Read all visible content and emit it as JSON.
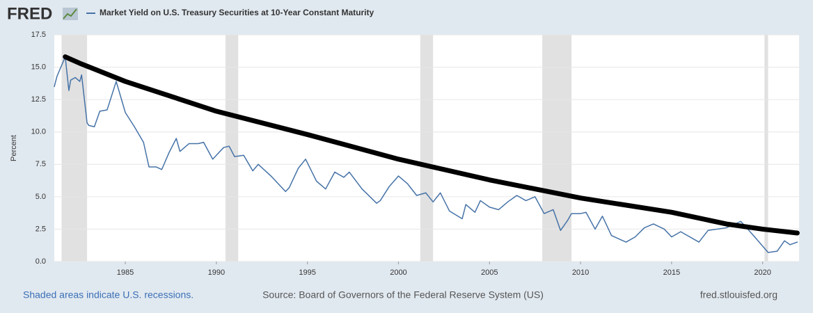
{
  "chart_data": {
    "type": "line",
    "logo": "FRED",
    "ylabel": "Percent",
    "notes": [
      "Shaded areas indicate U.S. recessions.",
      "Source: Board of Governors of the Federal Reserve System (US)",
      "fred.stlouisfed.org"
    ],
    "xlim": [
      1981.1,
      2022.0
    ],
    "xticks": [
      1985,
      1990,
      1995,
      2000,
      2005,
      2010,
      2015,
      2020
    ],
    "ylim": [
      0,
      17.5
    ],
    "yticks": [
      {
        "value": 0,
        "label": "0.0"
      },
      2.5,
      {
        "value": 5,
        "label": "5.0"
      },
      7.5,
      {
        "value": 10,
        "label": "10.0"
      },
      12.5,
      {
        "value": 15,
        "label": "15.0"
      },
      17.5
    ],
    "grid": true,
    "recessions": [
      [
        1981.5,
        1982.9
      ],
      [
        1990.5,
        1991.2
      ],
      [
        2001.2,
        2001.9
      ],
      [
        2007.9,
        2009.5
      ],
      [
        2020.1,
        2020.3
      ]
    ],
    "recession_color": "#e1e1e1",
    "series": [
      {
        "name": "Market Yield on U.S. Treasury Securities at 10-Year Constant Maturity",
        "color": "#4572a7",
        "width": 1.5,
        "x": [
          1981.1,
          1981.25,
          1981.7,
          1981.9,
          1982.0,
          1982.25,
          1982.5,
          1982.6,
          1982.9,
          1983.0,
          1983.3,
          1983.6,
          1984.0,
          1984.5,
          1985.0,
          1985.5,
          1986.0,
          1986.3,
          1986.7,
          1987.0,
          1987.4,
          1987.8,
          1988.0,
          1988.5,
          1989.0,
          1989.3,
          1989.8,
          1990.0,
          1990.4,
          1990.7,
          1991.0,
          1991.5,
          1992.0,
          1992.3,
          1993.0,
          1993.8,
          1994.0,
          1994.5,
          1994.9,
          1995.5,
          1996.0,
          1996.5,
          1997.0,
          1997.3,
          1998.0,
          1998.8,
          1999.0,
          1999.5,
          2000.0,
          2000.5,
          2001.0,
          2001.5,
          2001.9,
          2002.3,
          2002.8,
          2003.5,
          2003.7,
          2004.2,
          2004.5,
          2005.0,
          2005.5,
          2006.0,
          2006.5,
          2007.0,
          2007.5,
          2008.0,
          2008.5,
          2008.9,
          2009.3,
          2009.5,
          2010.0,
          2010.3,
          2010.8,
          2011.2,
          2011.7,
          2012.5,
          2013.0,
          2013.5,
          2014.0,
          2014.6,
          2015.0,
          2015.5,
          2016.5,
          2017.0,
          2018.0,
          2018.8,
          2019.5,
          2020.3,
          2020.8,
          2021.2,
          2021.5,
          2021.9
        ],
        "values": [
          13.5,
          14.3,
          15.8,
          13.2,
          14.0,
          14.2,
          13.9,
          14.4,
          10.7,
          10.5,
          10.4,
          11.6,
          11.7,
          13.9,
          11.5,
          10.4,
          9.2,
          7.3,
          7.3,
          7.1,
          8.4,
          9.5,
          8.5,
          9.1,
          9.1,
          9.2,
          7.9,
          8.2,
          8.8,
          8.9,
          8.1,
          8.2,
          7.0,
          7.5,
          6.6,
          5.4,
          5.7,
          7.2,
          7.9,
          6.2,
          5.6,
          6.9,
          6.5,
          6.9,
          5.6,
          4.5,
          4.7,
          5.8,
          6.6,
          6.0,
          5.1,
          5.3,
          4.6,
          5.3,
          3.9,
          3.3,
          4.4,
          3.8,
          4.7,
          4.2,
          4.0,
          4.6,
          5.1,
          4.7,
          5.0,
          3.7,
          4.0,
          2.4,
          3.2,
          3.7,
          3.7,
          3.8,
          2.5,
          3.5,
          2.0,
          1.5,
          1.9,
          2.6,
          2.9,
          2.5,
          1.9,
          2.3,
          1.5,
          2.4,
          2.6,
          3.1,
          2.0,
          0.7,
          0.8,
          1.6,
          1.3,
          1.5
        ]
      },
      {
        "color": "#000000",
        "width": 7,
        "x": [
          1981.7,
          1982.5,
          1985,
          1990,
          1995,
          2000,
          2005,
          2010,
          2015,
          2018,
          2020,
          2021.9
        ],
        "values": [
          15.8,
          15.3,
          13.9,
          11.6,
          9.8,
          7.9,
          6.3,
          4.9,
          3.8,
          2.9,
          2.5,
          2.2
        ]
      }
    ]
  }
}
